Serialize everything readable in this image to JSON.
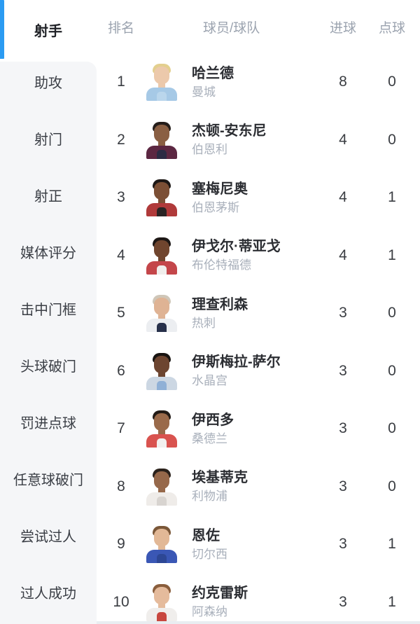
{
  "accent_color": "#2b9bf2",
  "sidebar": {
    "active": {
      "label": "射手"
    },
    "items": [
      {
        "label": "助攻"
      },
      {
        "label": "射门"
      },
      {
        "label": "射正"
      },
      {
        "label": "媒体评分"
      },
      {
        "label": "击中门框"
      },
      {
        "label": "头球破门"
      },
      {
        "label": "罚进点球"
      },
      {
        "label": "任意球破门"
      },
      {
        "label": "尝试过人"
      },
      {
        "label": "过人成功"
      }
    ]
  },
  "table": {
    "headers": {
      "rank": "排名",
      "player": "球员/球队",
      "goals": "进球",
      "penalties": "点球"
    },
    "rows": [
      {
        "rank": "1",
        "player": "哈兰德",
        "team": "曼城",
        "goals": "8",
        "penalties": "0",
        "avatar": {
          "skin": "#ecc9ab",
          "hair": "#e3cf8e",
          "shirt": "#a6c9e6",
          "shirt2": "#bad6ec"
        }
      },
      {
        "rank": "2",
        "player": "杰顿-安东尼",
        "team": "伯恩利",
        "goals": "4",
        "penalties": "0",
        "avatar": {
          "skin": "#8a5f43",
          "hair": "#241d1a",
          "shirt": "#5c2742",
          "shirt2": "#2c2b44"
        }
      },
      {
        "rank": "3",
        "player": "塞梅尼奥",
        "team": "伯恩茅斯",
        "goals": "4",
        "penalties": "1",
        "avatar": {
          "skin": "#7c4f35",
          "hair": "#1d1715",
          "shirt": "#b03a3a",
          "shirt2": "#2a2424"
        }
      },
      {
        "rank": "4",
        "player": "伊戈尔·蒂亚戈",
        "team": "布伦特福德",
        "goals": "4",
        "penalties": "1",
        "avatar": {
          "skin": "#70452e",
          "hair": "#1d1715",
          "shirt": "#c4464a",
          "shirt2": "#f0eeec"
        }
      },
      {
        "rank": "5",
        "player": "理查利森",
        "team": "热刺",
        "goals": "3",
        "penalties": "0",
        "avatar": {
          "skin": "#dfb394",
          "hair": "#cfc6b8",
          "shirt": "#eceef1",
          "shirt2": "#27304a"
        }
      },
      {
        "rank": "6",
        "player": "伊斯梅拉-萨尔",
        "team": "水晶宫",
        "goals": "3",
        "penalties": "0",
        "avatar": {
          "skin": "#6d4530",
          "hair": "#181411",
          "shirt": "#ccd7e3",
          "shirt2": "#8fb0d6"
        }
      },
      {
        "rank": "7",
        "player": "伊西多",
        "team": "桑德兰",
        "goals": "3",
        "penalties": "0",
        "avatar": {
          "skin": "#9a6a4a",
          "hair": "#221a15",
          "shirt": "#d9534f",
          "shirt2": "#f2f0ee"
        }
      },
      {
        "rank": "8",
        "player": "埃基蒂克",
        "team": "利物浦",
        "goals": "3",
        "penalties": "0",
        "avatar": {
          "skin": "#96684a",
          "hair": "#2a211b",
          "shirt": "#efece9",
          "shirt2": "#d8d4d0"
        }
      },
      {
        "rank": "9",
        "player": "恩佐",
        "team": "切尔西",
        "goals": "3",
        "penalties": "1",
        "avatar": {
          "skin": "#e2b896",
          "hair": "#7a5738",
          "shirt": "#3a57b5",
          "shirt2": "#2d4795"
        }
      },
      {
        "rank": "10",
        "player": "约克雷斯",
        "team": "阿森纳",
        "goals": "3",
        "penalties": "1",
        "avatar": {
          "skin": "#e5bb9c",
          "hair": "#8a5e3c",
          "shirt": "#f0eeec",
          "shirt2": "#c8473f"
        }
      }
    ]
  }
}
